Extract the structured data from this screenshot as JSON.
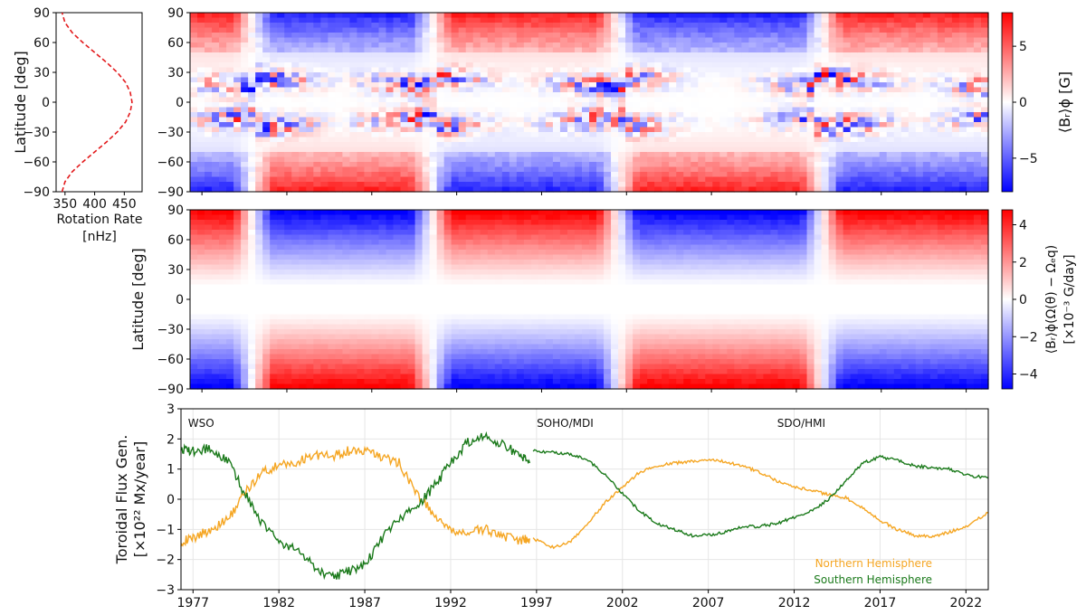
{
  "chart_data": [
    {
      "type": "line",
      "id": "rotation_profile",
      "xlabel": "Rotation Rate\n[nHz]",
      "xlabel_lines": [
        "Rotation Rate",
        "[nHz]"
      ],
      "ylabel": "Latitude [deg]",
      "xlim": [
        335,
        480
      ],
      "ylim": [
        -90,
        90
      ],
      "xticks": [
        350,
        400,
        450
      ],
      "yticks": [
        90,
        60,
        30,
        0,
        -30,
        -60,
        -90
      ],
      "line_style": "dashed",
      "color": "#e31a1c",
      "points": [
        {
          "lat": -90,
          "rate": 345
        },
        {
          "lat": -80,
          "rate": 350
        },
        {
          "lat": -70,
          "rate": 362
        },
        {
          "lat": -60,
          "rate": 380
        },
        {
          "lat": -50,
          "rate": 400
        },
        {
          "lat": -40,
          "rate": 420
        },
        {
          "lat": -30,
          "rate": 438
        },
        {
          "lat": -20,
          "rate": 452
        },
        {
          "lat": -10,
          "rate": 460
        },
        {
          "lat": 0,
          "rate": 463
        },
        {
          "lat": 10,
          "rate": 460
        },
        {
          "lat": 20,
          "rate": 452
        },
        {
          "lat": 30,
          "rate": 438
        },
        {
          "lat": 40,
          "rate": 420
        },
        {
          "lat": 50,
          "rate": 400
        },
        {
          "lat": 60,
          "rate": 380
        },
        {
          "lat": 70,
          "rate": 362
        },
        {
          "lat": 80,
          "rate": 350
        },
        {
          "lat": 90,
          "rate": 345
        }
      ]
    },
    {
      "type": "heatmap",
      "id": "br_butterfly",
      "ylabel": "",
      "xlim": [
        1976.3,
        2023.3
      ],
      "ylim": [
        -90,
        90
      ],
      "yticks": [
        90,
        60,
        30,
        0,
        -30,
        -60,
        -90
      ],
      "colorbar": {
        "label": "⟨B_r⟩_φ [G]",
        "label_display": "⟨Bᵣ⟩ϕ [G]",
        "range": [
          -8,
          8
        ],
        "ticks": [
          5,
          0,
          -5
        ],
        "cmap": "bwr"
      },
      "description_bands": [
        {
          "lat_range": [
            60,
            90
          ],
          "sign_by_epoch": [
            {
              "years": [
                1976.3,
                1980
              ],
              "sign": 1
            },
            {
              "years": [
                1980,
                1990
              ],
              "sign": -1
            },
            {
              "years": [
                1990,
                2001
              ],
              "sign": 1
            },
            {
              "years": [
                2001,
                2013
              ],
              "sign": -1
            },
            {
              "years": [
                2013,
                2023.3
              ],
              "sign": 1
            }
          ]
        },
        {
          "lat_range": [
            -90,
            -60
          ],
          "sign_by_epoch": [
            {
              "years": [
                1976.3,
                1980
              ],
              "sign": -1
            },
            {
              "years": [
                1980,
                1990
              ],
              "sign": 1
            },
            {
              "years": [
                1990,
                2001
              ],
              "sign": -1
            },
            {
              "years": [
                2001,
                2013
              ],
              "sign": 1
            },
            {
              "years": [
                2013,
                2023.3
              ],
              "sign": -1
            }
          ]
        }
      ]
    },
    {
      "type": "heatmap",
      "id": "toroidal_generation",
      "ylabel": "Latitude [deg]",
      "xlim": [
        1976.3,
        2023.3
      ],
      "ylim": [
        -90,
        90
      ],
      "yticks": [
        90,
        60,
        30,
        0,
        -30,
        -60,
        -90
      ],
      "colorbar": {
        "label_lines": [
          "⟨Bᵣ⟩ϕ(Ω(θ) − Ωₑq)",
          "[×10⁻³ G/day]"
        ],
        "range": [
          -4.8,
          4.8
        ],
        "ticks": [
          4,
          2,
          0,
          -2,
          -4
        ],
        "cmap": "bwr"
      }
    },
    {
      "type": "line",
      "id": "toroidal_flux",
      "ylabel_lines": [
        "Toroidal Flux Gen.",
        "[×10²² Mx/year]"
      ],
      "xlim": [
        1976.3,
        2023.3
      ],
      "ylim": [
        -3,
        3
      ],
      "yticks": [
        3,
        2,
        1,
        0,
        -1,
        -2,
        -3
      ],
      "xticks": [
        1977,
        1982,
        1987,
        1992,
        1997,
        2002,
        2007,
        2012,
        2017,
        2022
      ],
      "instrument_labels": [
        {
          "text": "WSO",
          "x": 1976.5
        },
        {
          "text": "SOHO/MDI",
          "x": 1996.8
        },
        {
          "text": "SDO/HMI",
          "x": 2010.8
        }
      ],
      "series": [
        {
          "name": "Northern Hemisphere",
          "color": "#f5a623",
          "segments": [
            {
              "x": [
                1976.3,
                1977,
                1978,
                1979,
                1980,
                1981,
                1982,
                1983,
                1984,
                1985,
                1986,
                1987,
                1988,
                1989,
                1990,
                1991,
                1992,
                1993,
                1994,
                1995,
                1996,
                1996.6
              ],
              "y": [
                -1.4,
                -1.3,
                -1.0,
                -0.7,
                0.2,
                0.9,
                1.1,
                1.2,
                1.5,
                1.4,
                1.6,
                1.6,
                1.4,
                1.2,
                0.2,
                -0.5,
                -1.1,
                -1.1,
                -1.0,
                -1.2,
                -1.4,
                -1.3
              ]
            },
            {
              "x": [
                1996.8,
                1998,
                1999,
                2000,
                2001,
                2002,
                2003,
                2004,
                2005,
                2006,
                2007,
                2008,
                2009,
                2010,
                2011,
                2012,
                2013,
                2014,
                2015,
                2016,
                2017,
                2018,
                2019,
                2020,
                2021,
                2022,
                2023.3
              ],
              "y": [
                -1.3,
                -1.6,
                -1.4,
                -0.8,
                -0.1,
                0.4,
                0.9,
                1.1,
                1.2,
                1.25,
                1.3,
                1.25,
                1.1,
                0.9,
                0.6,
                0.4,
                0.3,
                0.15,
                0.05,
                -0.3,
                -0.7,
                -1.0,
                -1.2,
                -1.25,
                -1.1,
                -0.9,
                -0.45
              ]
            }
          ]
        },
        {
          "name": "Southern Hemisphere",
          "color": "#1b7a1b",
          "segments": [
            {
              "x": [
                1976.3,
                1977,
                1978,
                1979,
                1980,
                1981,
                1982,
                1983,
                1984,
                1985,
                1986,
                1987,
                1988,
                1989,
                1990,
                1991,
                1992,
                1993,
                1994,
                1995,
                1996,
                1996.6
              ],
              "y": [
                1.7,
                1.6,
                1.7,
                1.3,
                0.2,
                -0.8,
                -1.4,
                -1.7,
                -2.2,
                -2.6,
                -2.4,
                -2.2,
                -1.3,
                -0.6,
                -0.3,
                0.4,
                1.2,
                1.9,
                2.1,
                1.8,
                1.5,
                1.2
              ]
            },
            {
              "x": [
                1996.8,
                1998,
                1999,
                2000,
                2001,
                2002,
                2003,
                2004,
                2005,
                2006,
                2007,
                2008,
                2009,
                2010,
                2011,
                2012,
                2013,
                2014,
                2015,
                2016,
                2017,
                2018,
                2019,
                2020,
                2021,
                2022,
                2023.3
              ],
              "y": [
                1.6,
                1.55,
                1.5,
                1.3,
                0.8,
                0.2,
                -0.4,
                -0.8,
                -1.0,
                -1.2,
                -1.2,
                -1.1,
                -0.9,
                -0.9,
                -0.8,
                -0.6,
                -0.4,
                0.0,
                0.6,
                1.2,
                1.4,
                1.3,
                1.1,
                1.05,
                1.0,
                0.8,
                0.7
              ]
            }
          ]
        }
      ],
      "legend": {
        "placement": "bottom-right",
        "entries": [
          "Northern Hemisphere",
          "Southern Hemisphere"
        ]
      }
    }
  ]
}
